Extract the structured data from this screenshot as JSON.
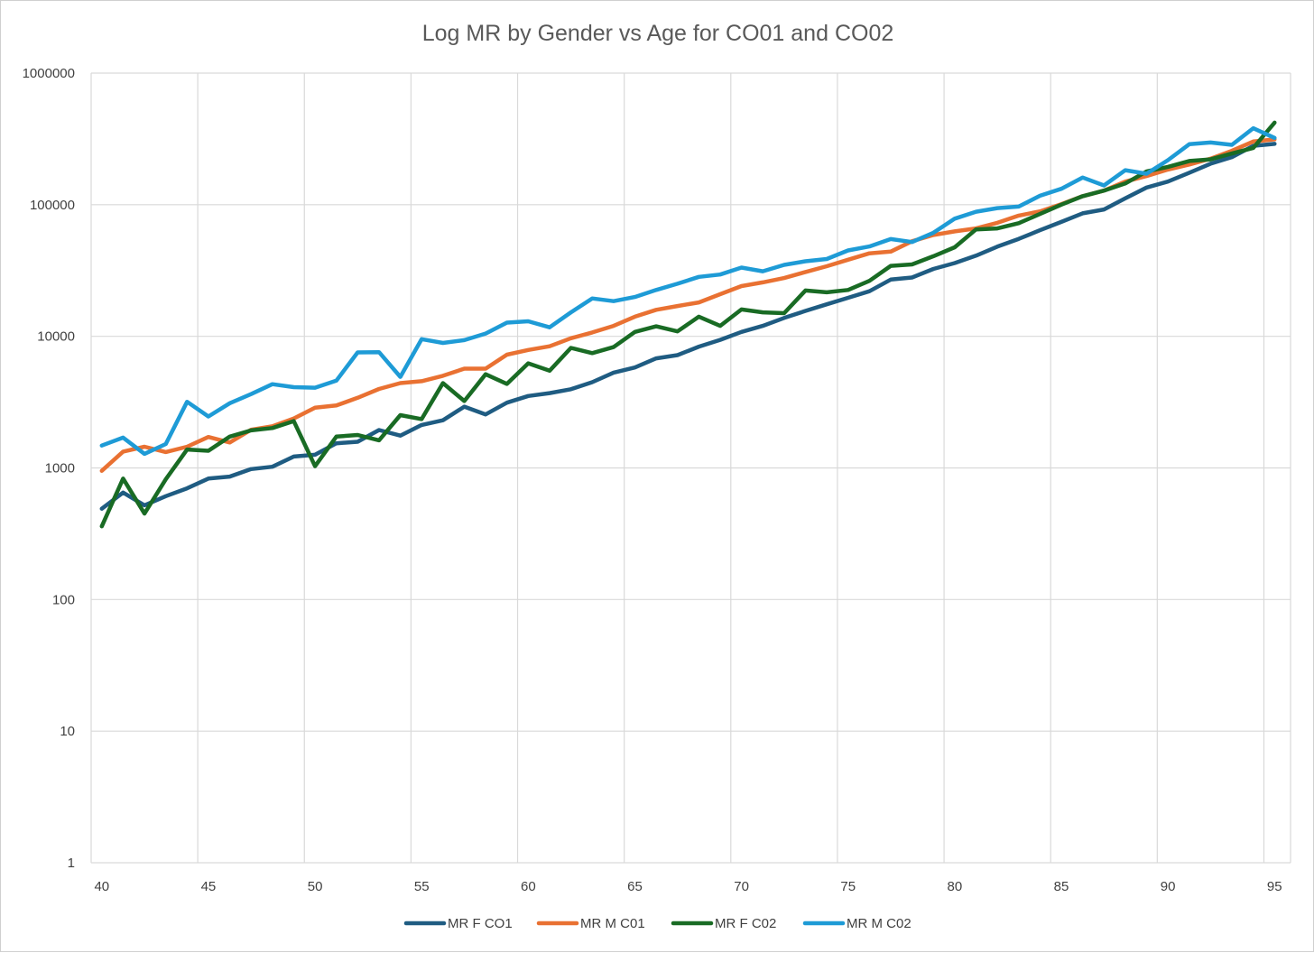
{
  "chart_data": {
    "type": "line",
    "title": "Log MR by Gender vs Age for CO01 and CO02",
    "xlabel": "",
    "ylabel": "",
    "y_scale": "log",
    "xlim": [
      40,
      95
    ],
    "ylim": [
      1,
      1000000
    ],
    "x_ticks": [
      "40",
      "45",
      "50",
      "55",
      "60",
      "65",
      "70",
      "75",
      "80",
      "85",
      "90",
      "95"
    ],
    "y_ticks": [
      "1",
      "10",
      "100",
      "1000",
      "10000",
      "100000",
      "1000000"
    ],
    "grid": "both",
    "legend_position": "bottom",
    "x": [
      40,
      41,
      42,
      43,
      44,
      45,
      46,
      47,
      48,
      49,
      50,
      51,
      52,
      53,
      54,
      55,
      56,
      57,
      58,
      59,
      60,
      61,
      62,
      63,
      64,
      65,
      66,
      67,
      68,
      69,
      70,
      71,
      72,
      73,
      74,
      75,
      76,
      77,
      78,
      79,
      80,
      81,
      82,
      83,
      84,
      85,
      86,
      87,
      88,
      89,
      90,
      91,
      92,
      93,
      94,
      95
    ],
    "series": [
      {
        "name": "MR F CO1",
        "color": "#1f5c82",
        "values": [
          490,
          650,
          520,
          610,
          700,
          830,
          860,
          980,
          1020,
          1220,
          1260,
          1540,
          1580,
          1940,
          1760,
          2120,
          2300,
          2920,
          2550,
          3130,
          3520,
          3700,
          3960,
          4480,
          5300,
          5800,
          6800,
          7200,
          8350,
          9400,
          10800,
          12000,
          13800,
          15600,
          17500,
          19600,
          22000,
          27000,
          28000,
          32500,
          36000,
          41000,
          48000,
          55000,
          64000,
          74000,
          86000,
          92000,
          112000,
          135000,
          150000,
          175000,
          205000,
          230000,
          280000,
          290000
        ]
      },
      {
        "name": "MR M C01",
        "color": "#e97132",
        "values": [
          950,
          1330,
          1450,
          1320,
          1450,
          1720,
          1560,
          1950,
          2070,
          2370,
          2870,
          2980,
          3410,
          3980,
          4410,
          4560,
          5010,
          5680,
          5680,
          7250,
          7880,
          8400,
          9670,
          10700,
          12000,
          14100,
          15900,
          17000,
          18100,
          20900,
          24100,
          25700,
          27700,
          30800,
          34100,
          38200,
          42700,
          44000,
          52800,
          58900,
          62700,
          66000,
          72900,
          82600,
          89000,
          101000,
          116000,
          128000,
          150000,
          165000,
          185000,
          202000,
          224000,
          257000,
          302000,
          314000
        ]
      },
      {
        "name": "MR F C02",
        "color": "#196b24",
        "values": [
          360,
          830,
          450,
          820,
          1380,
          1350,
          1730,
          1930,
          2010,
          2270,
          1030,
          1730,
          1780,
          1620,
          2520,
          2350,
          4410,
          3220,
          5150,
          4350,
          6230,
          5480,
          8160,
          7450,
          8280,
          10800,
          11900,
          10900,
          14100,
          12000,
          16000,
          15200,
          15000,
          22300,
          21600,
          22500,
          26400,
          34300,
          35200,
          40600,
          47500,
          64900,
          66100,
          72400,
          85000,
          100000,
          116000,
          128000,
          145000,
          179000,
          194000,
          215000,
          221000,
          245000,
          270000,
          420000
        ]
      },
      {
        "name": "MR M C02",
        "color": "#1e9bd6",
        "values": [
          1480,
          1700,
          1280,
          1520,
          3180,
          2460,
          3100,
          3640,
          4330,
          4110,
          4070,
          4600,
          7550,
          7580,
          4920,
          9520,
          8900,
          9360,
          10500,
          12700,
          13000,
          11700,
          15200,
          19400,
          18500,
          19900,
          22500,
          25100,
          28300,
          29500,
          33300,
          31200,
          34900,
          37200,
          38700,
          44900,
          48200,
          54800,
          52000,
          61200,
          78300,
          88500,
          94300,
          96800,
          117000,
          132000,
          161000,
          140000,
          183000,
          172000,
          218000,
          288000,
          297000,
          285000,
          381000,
          322000
        ]
      }
    ]
  }
}
